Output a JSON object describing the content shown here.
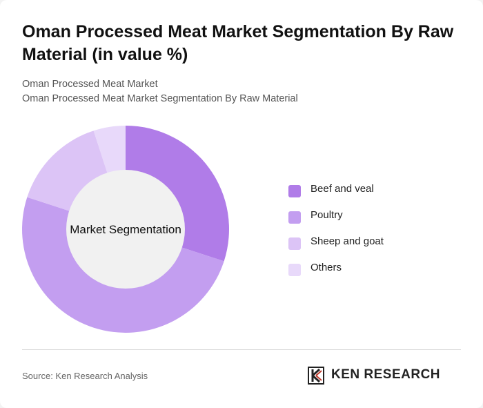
{
  "header": {
    "title": "Oman Processed Meat Market Segmentation By Raw Material (in value %)",
    "subtitle_1": "Oman Processed Meat Market",
    "subtitle_2": "Oman Processed Meat Market Segmentation By Raw Material"
  },
  "chart_data": {
    "type": "pie",
    "variant": "donut",
    "center_label": "Market Segmentation",
    "categories": [
      "Beef and veal",
      "Poultry",
      "Sheep and goat",
      "Others"
    ],
    "values": [
      30,
      50,
      15,
      5
    ],
    "colors": [
      "#b07ce8",
      "#c39ef0",
      "#dcc4f6",
      "#e8d9fa"
    ],
    "legend_position": "right"
  },
  "footer": {
    "source": "Source: Ken Research Analysis",
    "brand": "KEN RESEARCH"
  },
  "colors": {
    "center_fill": "#f1f1f1",
    "background": "#ffffff"
  }
}
